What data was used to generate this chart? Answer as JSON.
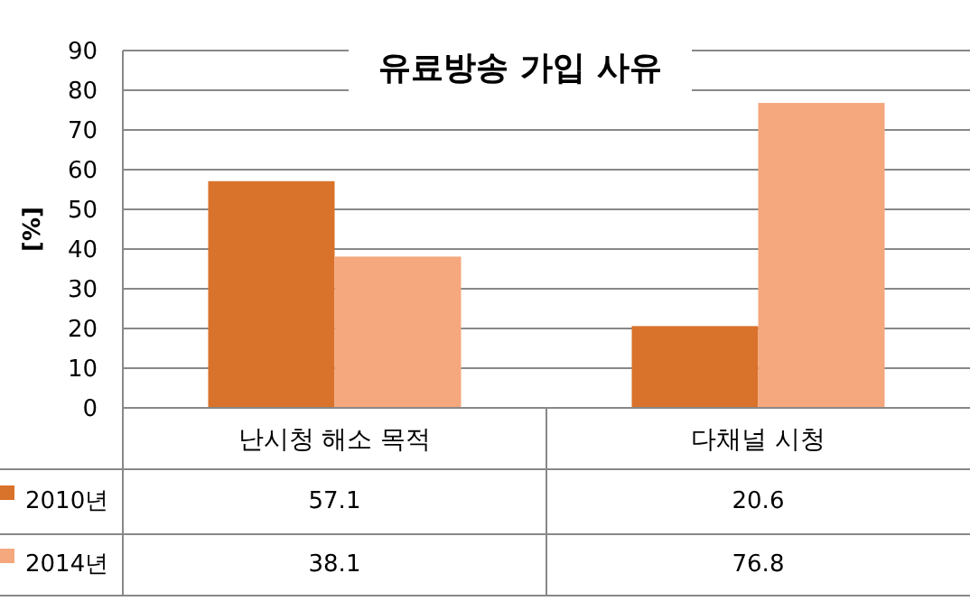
{
  "chart_data": {
    "type": "bar",
    "title": "유료방송 가입 사유",
    "ylabel": "[%]",
    "categories": [
      "난시청 해소 목적",
      "다채널 시청"
    ],
    "series": [
      {
        "name": "2010년",
        "color": "#d9722a",
        "values": [
          57.1,
          20.6
        ]
      },
      {
        "name": "2014년",
        "color": "#f5a77e",
        "values": [
          38.1,
          76.8
        ]
      }
    ],
    "ylim": [
      0,
      90
    ],
    "yticks": [
      0,
      10,
      20,
      30,
      40,
      50,
      60,
      70,
      80,
      90
    ],
    "grid": "y",
    "data_labels": true,
    "legend": "bottom left"
  }
}
